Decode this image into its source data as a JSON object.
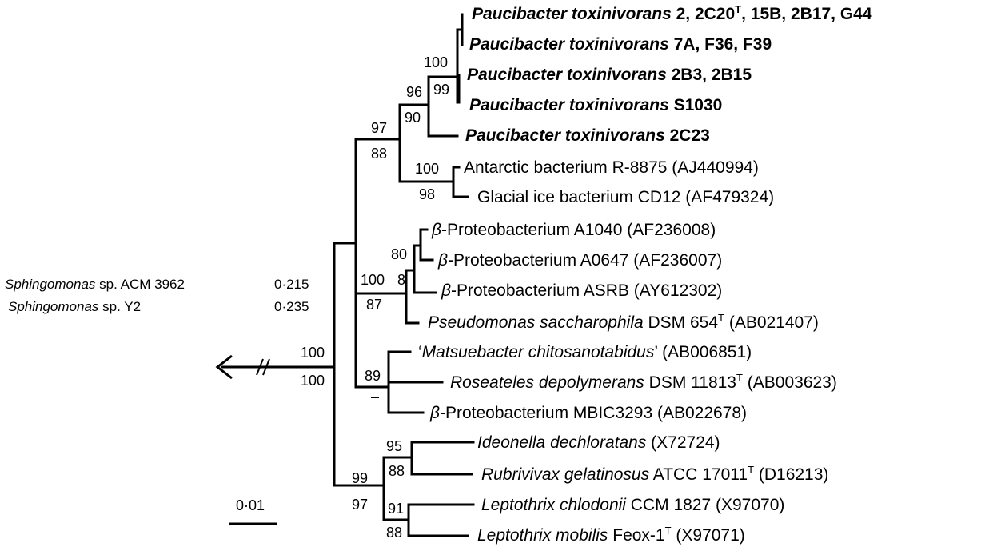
{
  "taxa": [
    {
      "id": "pt1",
      "parts": [
        {
          "t": "Paucibacter toxinivorans",
          "i": true
        },
        {
          "t": " 2, 2C20"
        },
        {
          "t": "T",
          "sup": true
        },
        {
          "t": ", 15B, 2B17, G44"
        }
      ],
      "bold": true
    },
    {
      "id": "pt2",
      "parts": [
        {
          "t": "Paucibacter toxinivorans",
          "i": true
        },
        {
          "t": " 7A, F36, F39"
        }
      ],
      "bold": true
    },
    {
      "id": "pt3",
      "parts": [
        {
          "t": "Paucibacter toxinivorans",
          "i": true
        },
        {
          "t": " 2B3, 2B15"
        }
      ],
      "bold": true
    },
    {
      "id": "pt4",
      "parts": [
        {
          "t": "Paucibacter toxinivorans",
          "i": true
        },
        {
          "t": " S1030"
        }
      ],
      "bold": true
    },
    {
      "id": "pt5",
      "parts": [
        {
          "t": "Paucibacter toxinivorans",
          "i": true
        },
        {
          "t": " 2C23"
        }
      ],
      "bold": true
    },
    {
      "id": "ant",
      "parts": [
        {
          "t": "Antarctic bacterium R-8875 (AJ440994)"
        }
      ]
    },
    {
      "id": "gla",
      "parts": [
        {
          "t": "Glacial ice bacterium CD12 (AF479324)"
        }
      ]
    },
    {
      "id": "b1040",
      "parts": [
        {
          "t": "β",
          "i": true
        },
        {
          "t": "-Proteobacterium A1040 (AF236008)"
        }
      ]
    },
    {
      "id": "b0647",
      "parts": [
        {
          "t": "β",
          "i": true
        },
        {
          "t": "-Proteobacterium A0647 (AF236007)"
        }
      ]
    },
    {
      "id": "basrb",
      "parts": [
        {
          "t": "β",
          "i": true
        },
        {
          "t": "-Proteobacterium ASRB (AY612302)"
        }
      ]
    },
    {
      "id": "psac",
      "parts": [
        {
          "t": "Pseudomonas saccharophila",
          "i": true
        },
        {
          "t": " DSM 654"
        },
        {
          "t": "T",
          "sup": true
        },
        {
          "t": " (AB021407)"
        }
      ]
    },
    {
      "id": "mats",
      "parts": [
        {
          "t": "‘"
        },
        {
          "t": "Matsuebacter chitosanotabidus",
          "i": true
        },
        {
          "t": "’ (AB006851)"
        }
      ]
    },
    {
      "id": "rose",
      "parts": [
        {
          "t": "Roseateles depolymerans",
          "i": true
        },
        {
          "t": " DSM 11813"
        },
        {
          "t": "T",
          "sup": true
        },
        {
          "t": " (AB003623)"
        }
      ]
    },
    {
      "id": "mbic",
      "parts": [
        {
          "t": "β",
          "i": true
        },
        {
          "t": "-Proteobacterium MBIC3293 (AB022678)"
        }
      ]
    },
    {
      "id": "ideo",
      "parts": [
        {
          "t": "Ideonella dechloratans",
          "i": true
        },
        {
          "t": " (X72724)"
        }
      ]
    },
    {
      "id": "rubr",
      "parts": [
        {
          "t": "Rubrivivax gelatinosus",
          "i": true
        },
        {
          "t": " ATCC 17011"
        },
        {
          "t": "T",
          "sup": true
        },
        {
          "t": " (D16213)"
        }
      ]
    },
    {
      "id": "lchl",
      "parts": [
        {
          "t": "Leptothrix chlodonii",
          "i": true
        },
        {
          "t": " CCM 1827 (X97070)"
        }
      ]
    },
    {
      "id": "lmob",
      "parts": [
        {
          "t": "Leptothrix mobilis",
          "i": true
        },
        {
          "t": " Feox-1"
        },
        {
          "t": "T",
          "sup": true
        },
        {
          "t": " (X97071)"
        }
      ]
    }
  ],
  "bootstrap": {
    "n100a": "100",
    "n99a": "99",
    "n96": "96",
    "n90": "90",
    "n97a": "97",
    "n88a": "88",
    "n100b": "100",
    "n98": "98",
    "n80": "80",
    "n8": "8",
    "n100c": "100",
    "n87": "87",
    "n89": "89",
    "ndash": "–",
    "n100root1": "100",
    "n100root2": "100",
    "n95": "95",
    "n88b": "88",
    "n99b": "99",
    "n97b": "97",
    "n91": "91",
    "n88c": "88"
  },
  "outgroup": [
    {
      "name": "Sphingomonas",
      "rest": " sp. ACM 3962",
      "dist": "0·215"
    },
    {
      "name": "Sphingomonas",
      "rest": " sp. Y2",
      "dist": "0·235"
    }
  ],
  "scale_bar": {
    "label": "0·01"
  }
}
